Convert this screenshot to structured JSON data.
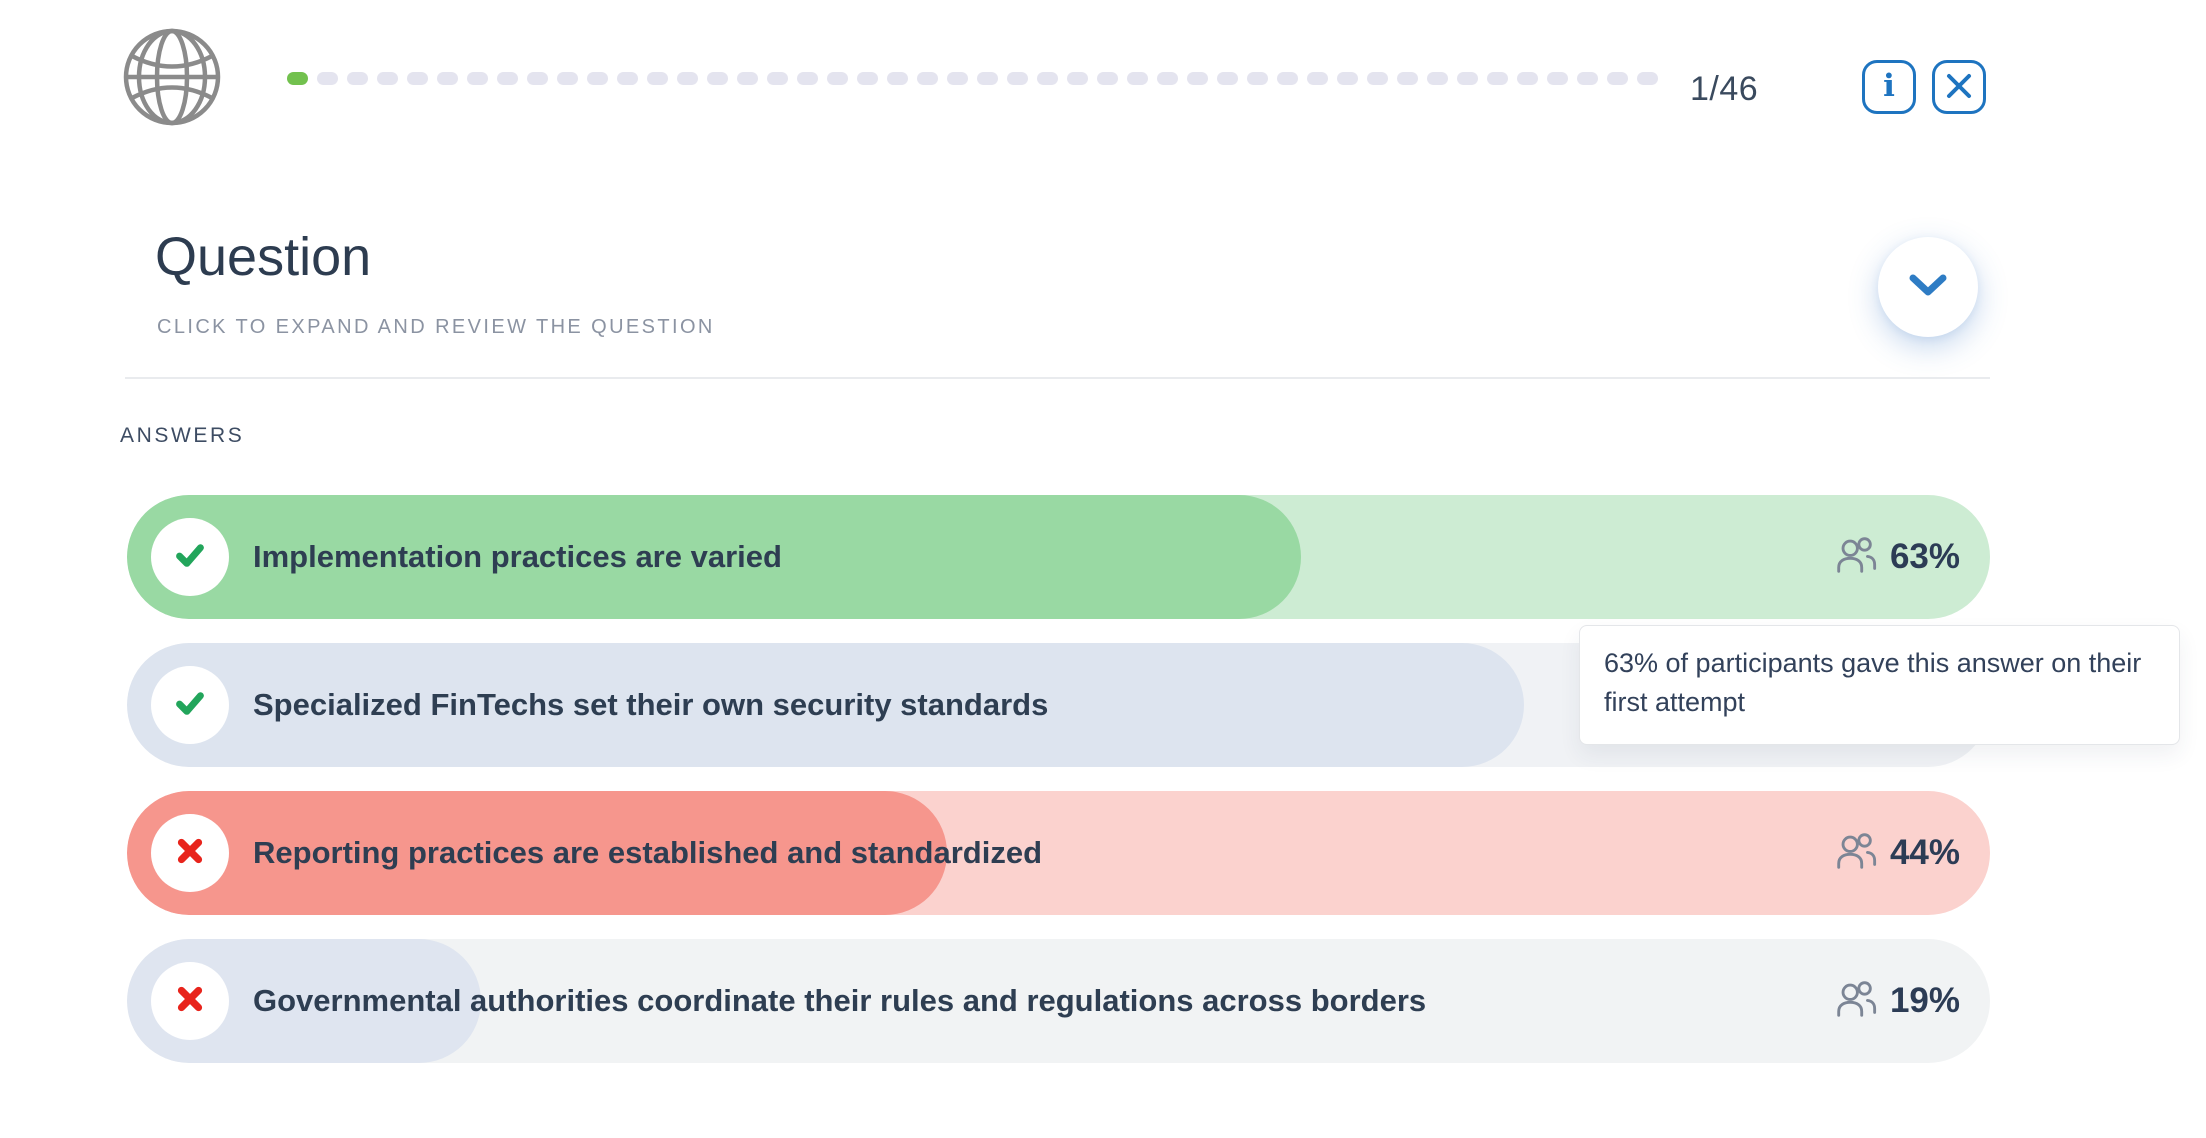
{
  "header": {
    "progress": {
      "current": 1,
      "total": 46,
      "counter": "1/46"
    },
    "info_icon_glyph": "i"
  },
  "question": {
    "title": "Question",
    "subtitle": "CLICK TO EXPAND AND REVIEW THE QUESTION"
  },
  "answers": {
    "label": "ANSWERS",
    "rows": [
      {
        "text": "Implementation practices are varied",
        "mark": "check",
        "theme": "green",
        "fill_percent": 63,
        "stat": "63%"
      },
      {
        "text": "Specialized FinTechs set their own security standards",
        "mark": "check",
        "theme": "blue",
        "fill_percent": 75
      },
      {
        "text": "Reporting practices are established and standardized",
        "mark": "cross",
        "theme": "red",
        "fill_percent": 44,
        "stat": "44%"
      },
      {
        "text": "Governmental authorities coordinate their rules and regulations across borders",
        "mark": "cross",
        "theme": "gray",
        "fill_percent": 19,
        "stat": "19%"
      }
    ]
  },
  "tooltip": {
    "text": "63% of participants gave this answer on their first attempt"
  },
  "colors": {
    "accent_blue": "#1e74c0",
    "progress_active": "#72c14e",
    "progress_inactive": "#e4e4ef",
    "correct_fill": "#99d9a3",
    "correct_track": "#cdecd3",
    "wrong_fill": "#f6968d",
    "wrong_track": "#fbd2ce",
    "neutral_fill": "#dde4ef",
    "neutral_track": "#f1f3f4",
    "check_green": "#22a55b",
    "cross_red": "#e8241c",
    "text_navy": "#2e3e52"
  }
}
